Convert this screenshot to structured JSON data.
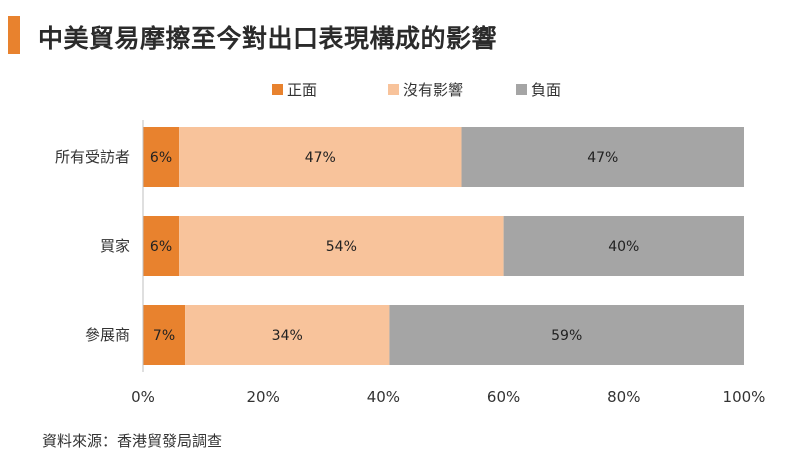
{
  "title": "中美貿易摩擦至今對出口表現構成的影響",
  "source": "資料來源：香港貿發局調查",
  "chart_data": {
    "type": "bar",
    "orientation": "horizontal",
    "stacked": true,
    "categories": [
      "所有受訪者",
      "買家",
      "參展商"
    ],
    "series": [
      {
        "name": "正面",
        "color": "#e8822e",
        "values": [
          6,
          6,
          7
        ]
      },
      {
        "name": "沒有影響",
        "color": "#f8c39b",
        "values": [
          47,
          54,
          34
        ]
      },
      {
        "name": "負面",
        "color": "#a5a5a5",
        "values": [
          47,
          40,
          59
        ]
      }
    ],
    "data_labels": [
      [
        "6%",
        "47%",
        "47%"
      ],
      [
        "6%",
        "54%",
        "40%"
      ],
      [
        "7%",
        "34%",
        "59%"
      ]
    ],
    "xlim": [
      0,
      100
    ],
    "xticks": [
      0,
      20,
      40,
      60,
      80,
      100
    ],
    "xtick_labels": [
      "0%",
      "20%",
      "40%",
      "60%",
      "80%",
      "100%"
    ],
    "legend_position": "top",
    "grid": false
  }
}
